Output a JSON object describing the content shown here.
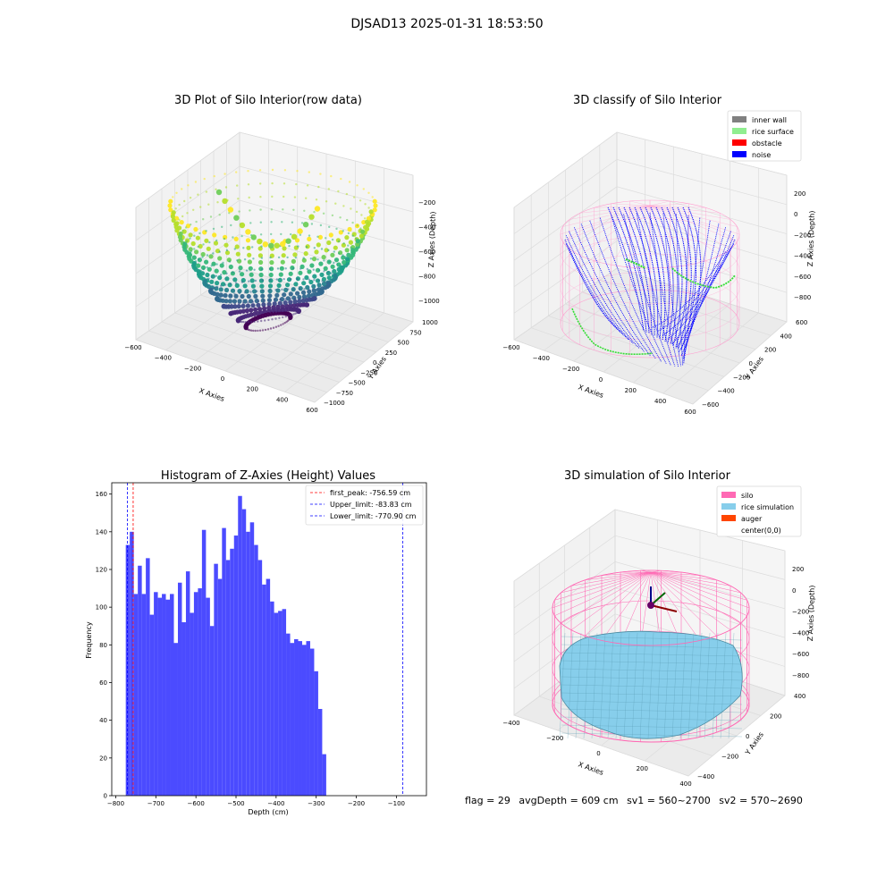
{
  "figure_title": "DJSAD13 2025-01-31 18:53:50",
  "chart_data": [
    {
      "type": "scatter3d",
      "title": "3D Plot of Silo Interior(row data)",
      "xlabel": "X Axies",
      "ylabel": "Y Axies",
      "zlabel": "Z Axies (Depth)",
      "x_ticks": [
        "−600",
        "−400",
        "−200",
        "0",
        "200",
        "400",
        "600"
      ],
      "y_ticks": [
        "−1000",
        "−750",
        "−500",
        "−250",
        "0",
        "250",
        "500",
        "750",
        "1000"
      ],
      "z_ticks": [
        "−1000",
        "−800",
        "−600",
        "−400",
        "−200"
      ],
      "colormap": "viridis"
    },
    {
      "type": "scatter3d",
      "title": "3D classify of Silo Interior",
      "xlabel": "X Axies",
      "ylabel": "Y Axies",
      "zlabel": "Z Axies (Depth)",
      "x_ticks": [
        "−600",
        "−400",
        "−200",
        "0",
        "200",
        "400",
        "600"
      ],
      "y_ticks": [
        "−600",
        "−400",
        "−200",
        "0",
        "200",
        "400",
        "600"
      ],
      "z_ticks": [
        "−800",
        "−600",
        "−400",
        "−200",
        "0",
        "200"
      ],
      "legend": [
        {
          "label": "inner wall",
          "color": "#808080"
        },
        {
          "label": "rice surface",
          "color": "#90ee90"
        },
        {
          "label": "obstacle",
          "color": "#ff0000"
        },
        {
          "label": "noise",
          "color": "#0000ff"
        }
      ],
      "legend_position": "top-right"
    },
    {
      "type": "bar",
      "title": "Histogram of Z-Axies (Height) Values",
      "xlabel": "Depth (cm)",
      "ylabel": "Frequency",
      "bar_color": "#4b4bff",
      "bin_start": -775,
      "bin_width": 10,
      "values": [
        133,
        140,
        107,
        122,
        107,
        126,
        96,
        108,
        105,
        107,
        104,
        107,
        81,
        113,
        92,
        119,
        97,
        108,
        110,
        141,
        105,
        90,
        123,
        115,
        142,
        125,
        131,
        138,
        159,
        152,
        140,
        145,
        133,
        125,
        112,
        115,
        103,
        97,
        98,
        99,
        86,
        81,
        83,
        82,
        80,
        82,
        78,
        66,
        46,
        22
      ],
      "xlim": [
        -810,
        -25
      ],
      "ylim": [
        0,
        166
      ],
      "x_ticks": [
        -800,
        -700,
        -600,
        -500,
        -400,
        -300,
        -200,
        -100
      ],
      "y_ticks": [
        0,
        20,
        40,
        60,
        80,
        100,
        120,
        140,
        160
      ],
      "lines": [
        {
          "label": "first_peak: -756.59 cm",
          "x": -756.59,
          "color": "#ff0000"
        },
        {
          "label": "Upper_limit: -83.83 cm",
          "x": -83.83,
          "color": "#0000ff"
        },
        {
          "label": "Lower_limit: -770.90 cm",
          "x": -770.9,
          "color": "#0000ff"
        }
      ],
      "legend_position": "top-right"
    },
    {
      "type": "surface3d",
      "title": "3D simulation of Silo Interior",
      "xlabel": "X Axies",
      "ylabel": "Y Axies",
      "zlabel": "Z Axies (Depth)",
      "x_ticks": [
        "−400",
        "−200",
        "0",
        "200",
        "400"
      ],
      "y_ticks": [
        "−400",
        "−200",
        "0",
        "200",
        "400"
      ],
      "z_ticks": [
        "−800",
        "−600",
        "−400",
        "−200",
        "0",
        "200"
      ],
      "legend": [
        {
          "label": "silo",
          "color": "#ff69b4"
        },
        {
          "label": "rice simulation",
          "color": "#87ceeb"
        },
        {
          "label": "auger",
          "color": "#ff4500"
        },
        {
          "label": "center(0,0)",
          "color": ""
        }
      ],
      "legend_position": "top-right"
    }
  ],
  "info": {
    "flag": "flag = 29",
    "avg_depth": "avgDepth = 609 cm",
    "sv1": "sv1 = 560~2700",
    "sv2": "sv2 = 570~2690"
  }
}
